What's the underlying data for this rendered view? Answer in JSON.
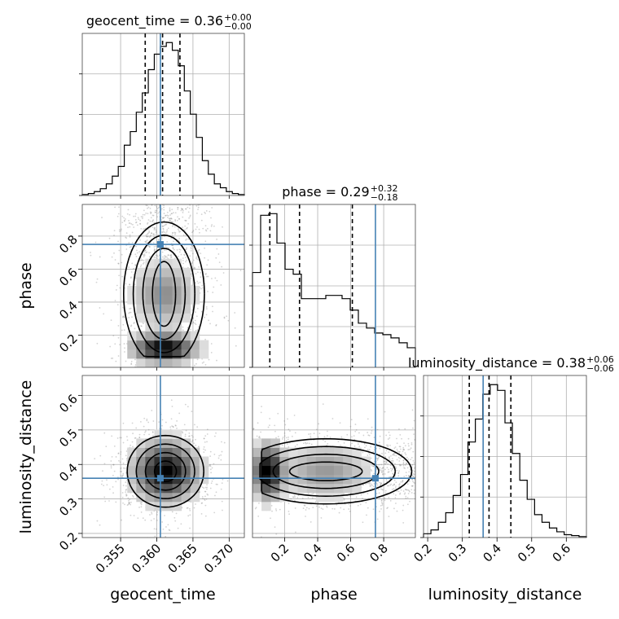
{
  "chart_data": {
    "type": "corner",
    "parameters": [
      "geocent_time",
      "phase",
      "luminosity_distance"
    ],
    "truths": {
      "geocent_time": 0.3605,
      "phase": 0.75,
      "luminosity_distance": 0.36
    },
    "colors": {
      "truth": "#4682b4",
      "contour": "#000000",
      "grid": "#b0b0b0",
      "scatter": "#808080"
    },
    "titles": [
      {
        "param": "geocent_time",
        "text": "geocent_time = 0.36",
        "sup": "+0.00",
        "sub": "−0.00"
      },
      {
        "param": "phase",
        "text": "phase = 0.29",
        "sup": "+0.32",
        "sub": "−0.18"
      },
      {
        "param": "luminosity_distance",
        "text": "luminosity_distance = 0.38",
        "sup": "+0.06",
        "sub": "−0.06"
      }
    ],
    "axis_labels": {
      "geocent_time": "geocent_time",
      "phase": "phase",
      "luminosity_distance": "luminosity_distance"
    },
    "axes": {
      "geocent_time": {
        "range": [
          0.3497,
          0.3721
        ],
        "ticks": [
          0.355,
          0.36,
          0.365,
          0.37
        ],
        "tick_labels": [
          "0.355",
          "0.360",
          "0.365",
          "0.370"
        ]
      },
      "phase": {
        "range": [
          0.005,
          0.992
        ],
        "ticks": [
          0.2,
          0.4,
          0.6,
          0.8
        ],
        "tick_labels": [
          "0.2",
          "0.4",
          "0.6",
          "0.8"
        ]
      },
      "luminosity_distance": {
        "range": [
          0.188,
          0.658
        ],
        "ticks": [
          0.2,
          0.3,
          0.4,
          0.5,
          0.6
        ],
        "tick_labels": [
          "0.2",
          "0.3",
          "0.4",
          "0.5",
          "0.6"
        ]
      }
    },
    "quantiles": {
      "geocent_time": [
        0.3584,
        0.3608,
        0.3632
      ],
      "phase": [
        0.11,
        0.29,
        0.61
      ],
      "luminosity_distance": [
        0.32,
        0.377,
        0.44
      ]
    },
    "histograms": {
      "geocent_time": {
        "edges_range": [
          0.3497,
          0.3721
        ],
        "counts": [
          0.5,
          1,
          2,
          3.5,
          6,
          10,
          15,
          26,
          33,
          43,
          53,
          65,
          73,
          77,
          79,
          75,
          67,
          54,
          42,
          30,
          18,
          11,
          6,
          4,
          2,
          1,
          0.5
        ]
      },
      "phase": {
        "edges_range": [
          0.005,
          0.992
        ],
        "counts": [
          58,
          93,
          94,
          76,
          60,
          57,
          42,
          42,
          42,
          44,
          44,
          42,
          35,
          27,
          24,
          21,
          20,
          18,
          15,
          12
        ]
      },
      "luminosity_distance": {
        "edges_range": [
          0.188,
          0.658
        ],
        "counts": [
          2,
          4,
          8,
          13,
          22,
          33,
          50,
          62,
          75,
          80,
          77,
          60,
          44,
          30,
          20,
          12,
          8,
          5,
          3,
          1.5,
          1,
          0.5
        ]
      }
    },
    "joint": [
      {
        "x": "geocent_time",
        "y": "phase",
        "mean": [
          0.361,
          0.38
        ],
        "std": [
          0.0028,
          0.22
        ],
        "corr": 0.0
      },
      {
        "x": "geocent_time",
        "y": "luminosity_distance",
        "mean": [
          0.3612,
          0.38
        ],
        "std": [
          0.0028,
          0.055
        ],
        "corr": 0.1
      },
      {
        "x": "phase",
        "y": "luminosity_distance",
        "mean": [
          0.42,
          0.38
        ],
        "std": [
          0.24,
          0.05
        ],
        "corr": 0.0
      }
    ]
  }
}
